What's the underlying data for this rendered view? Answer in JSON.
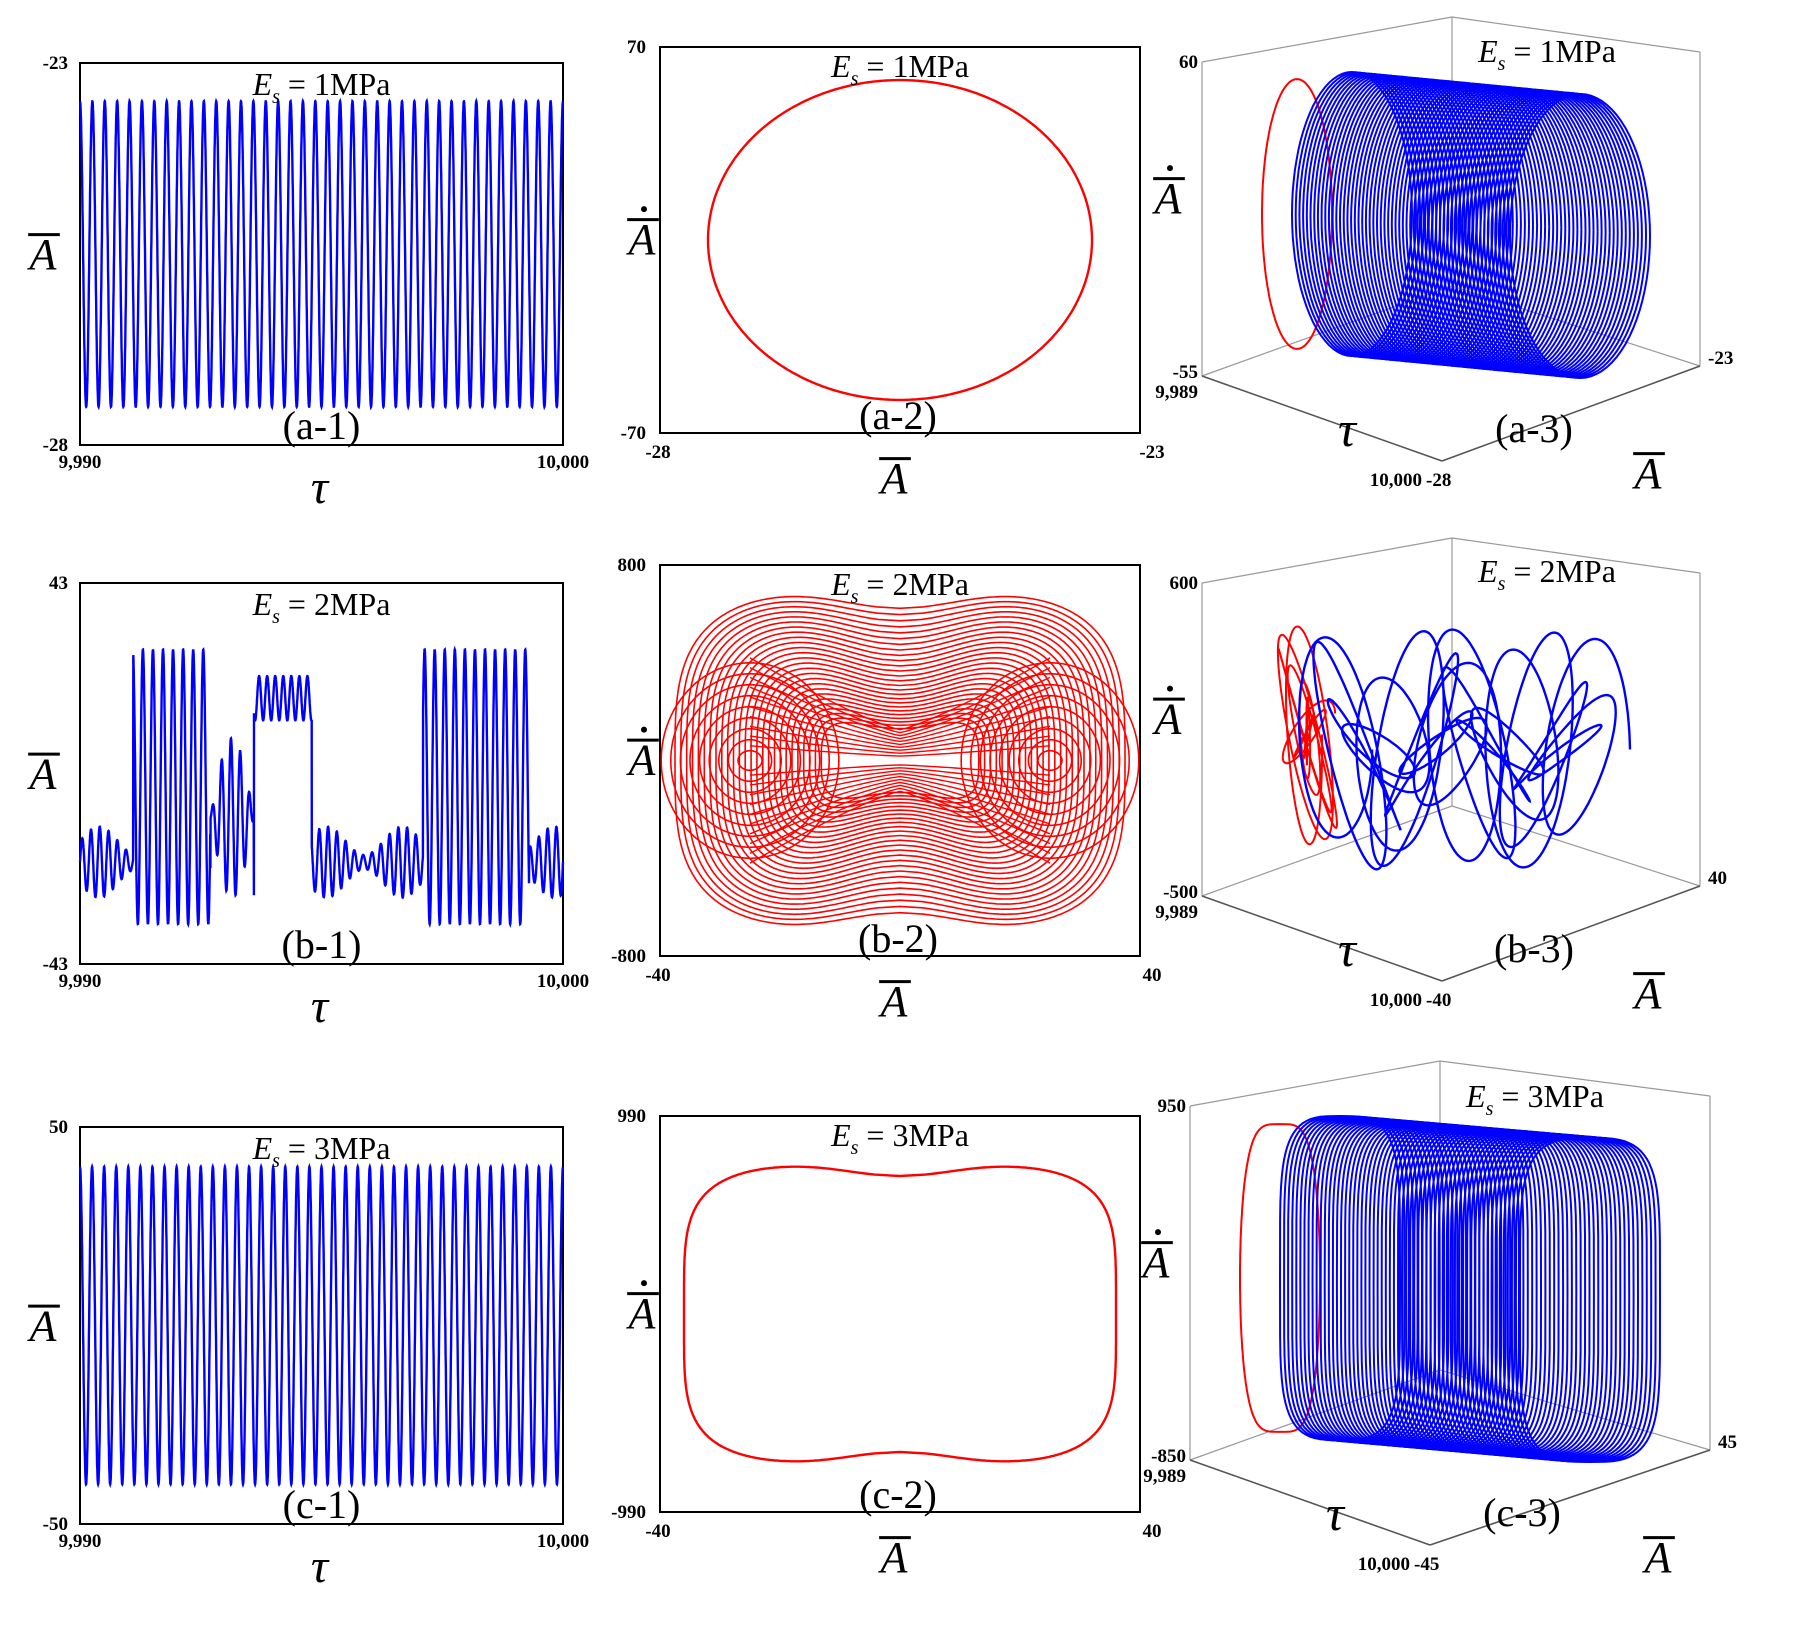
{
  "colors": {
    "time_series": "#0000ff",
    "phase": "#ff0000",
    "box": "#000000",
    "box3d": "#999999"
  },
  "rows": [
    {
      "Es": "1MPa"
    },
    {
      "Es": "2MPa"
    },
    {
      "Es": "3MPa"
    }
  ],
  "chart_data": [
    {
      "id": "a-1",
      "type": "line",
      "panel_label": "(a-1)",
      "title_var": "E",
      "title_sub": "s",
      "title_value": "= 1MPa",
      "xlabel": "τ",
      "ylabel": "A̅",
      "x_ticks": [
        "9,990",
        "10,000"
      ],
      "y_ticks": [
        "-23",
        "-28"
      ],
      "xlim": [
        9990,
        10000
      ],
      "ylim": [
        -28,
        -23
      ],
      "series": [
        {
          "kind": "sine",
          "cycles": 39,
          "min": -27.5,
          "max": -23.5
        }
      ]
    },
    {
      "id": "a-2",
      "type": "line",
      "panel_label": "(a-2)",
      "title_var": "E",
      "title_sub": "s",
      "title_value": "= 1MPa",
      "xlabel": "A̅",
      "ylabel": "A̅̇",
      "x_ticks": [
        "-28",
        "-23"
      ],
      "y_ticks": [
        "70",
        "-70"
      ],
      "xlim": [
        -28,
        -23
      ],
      "ylim": [
        -70,
        70
      ],
      "series": [
        {
          "kind": "ellipse",
          "x_range": [
            -27.5,
            -23.5
          ],
          "y_range": [
            -58,
            58
          ]
        }
      ]
    },
    {
      "id": "a-3",
      "type": "line",
      "panel_label": "(a-3)",
      "title_var": "E",
      "title_sub": "s",
      "title_value": "= 1MPa",
      "xlabel": "τ",
      "ylabel": "A̅̇",
      "zlabel": "A̅",
      "tau_ticks": [
        "9,989",
        "10,000"
      ],
      "vel_ticks": [
        "60",
        "-55"
      ],
      "amp_ticks": [
        "-23",
        "-28"
      ],
      "series": [
        {
          "kind": "cylinder",
          "loops": 60,
          "shape": 0
        }
      ]
    },
    {
      "id": "b-1",
      "type": "line",
      "panel_label": "(b-1)",
      "title_var": "E",
      "title_sub": "s",
      "title_value": "= 2MPa",
      "xlabel": "τ",
      "ylabel": "A̅",
      "x_ticks": [
        "9,990",
        "10,000"
      ],
      "y_ticks": [
        "43",
        "-43"
      ],
      "xlim": [
        9990,
        10000
      ],
      "ylim": [
        -43,
        43
      ],
      "series": [
        {
          "kind": "chaotic",
          "min": -34,
          "max": 30
        }
      ]
    },
    {
      "id": "b-2",
      "type": "line",
      "panel_label": "(b-2)",
      "title_var": "E",
      "title_sub": "s",
      "title_value": "= 2MPa",
      "xlabel": "A̅",
      "ylabel": "A̅̇",
      "x_ticks": [
        "-40",
        "40"
      ],
      "y_ticks": [
        "800",
        "-800"
      ],
      "xlim": [
        -40,
        40
      ],
      "ylim": [
        -800,
        800
      ],
      "series": [
        {
          "kind": "double-well",
          "wells": [
            -25,
            25
          ],
          "x_range": [
            -38,
            37
          ],
          "y_range": [
            -710,
            690
          ]
        }
      ]
    },
    {
      "id": "b-3",
      "type": "line",
      "panel_label": "(b-3)",
      "title_var": "E",
      "title_sub": "s",
      "title_value": "= 2MPa",
      "xlabel": "τ",
      "ylabel": "A̅̇",
      "zlabel": "A̅",
      "tau_ticks": [
        "9,989",
        "10,000"
      ],
      "vel_ticks": [
        "600",
        "-500"
      ],
      "amp_ticks": [
        "40",
        "-40"
      ],
      "series": [
        {
          "kind": "chaotic3d"
        }
      ]
    },
    {
      "id": "c-1",
      "type": "line",
      "panel_label": "(c-1)",
      "title_var": "E",
      "title_sub": "s",
      "title_value": "= 3MPa",
      "xlabel": "τ",
      "ylabel": "A̅",
      "x_ticks": [
        "9,990",
        "10,000"
      ],
      "y_ticks": [
        "50",
        "-50"
      ],
      "xlim": [
        9990,
        10000
      ],
      "ylim": [
        -50,
        50
      ],
      "series": [
        {
          "kind": "sine",
          "cycles": 40,
          "min": -40,
          "max": 40
        }
      ]
    },
    {
      "id": "c-2",
      "type": "line",
      "panel_label": "(c-2)",
      "title_var": "E",
      "title_sub": "s",
      "title_value": "= 3MPa",
      "xlabel": "A̅",
      "ylabel": "A̅̇",
      "x_ticks": [
        "-40",
        "40"
      ],
      "y_ticks": [
        "990",
        "-990"
      ],
      "xlim": [
        -40,
        40
      ],
      "ylim": [
        -990,
        990
      ],
      "series": [
        {
          "kind": "superellipse",
          "x_range": [
            -36,
            36
          ],
          "y_range": [
            -750,
            750
          ]
        }
      ]
    },
    {
      "id": "c-3",
      "type": "line",
      "panel_label": "(c-3)",
      "title_var": "E",
      "title_sub": "s",
      "title_value": "= 3MPa",
      "xlabel": "τ",
      "ylabel": "A̅̇",
      "zlabel": "A̅",
      "tau_ticks": [
        "9,989",
        "10,000"
      ],
      "vel_ticks": [
        "950",
        "-850"
      ],
      "amp_ticks": [
        "45",
        "-45"
      ],
      "series": [
        {
          "kind": "cylinder",
          "loops": 60,
          "shape": 1
        }
      ]
    }
  ]
}
